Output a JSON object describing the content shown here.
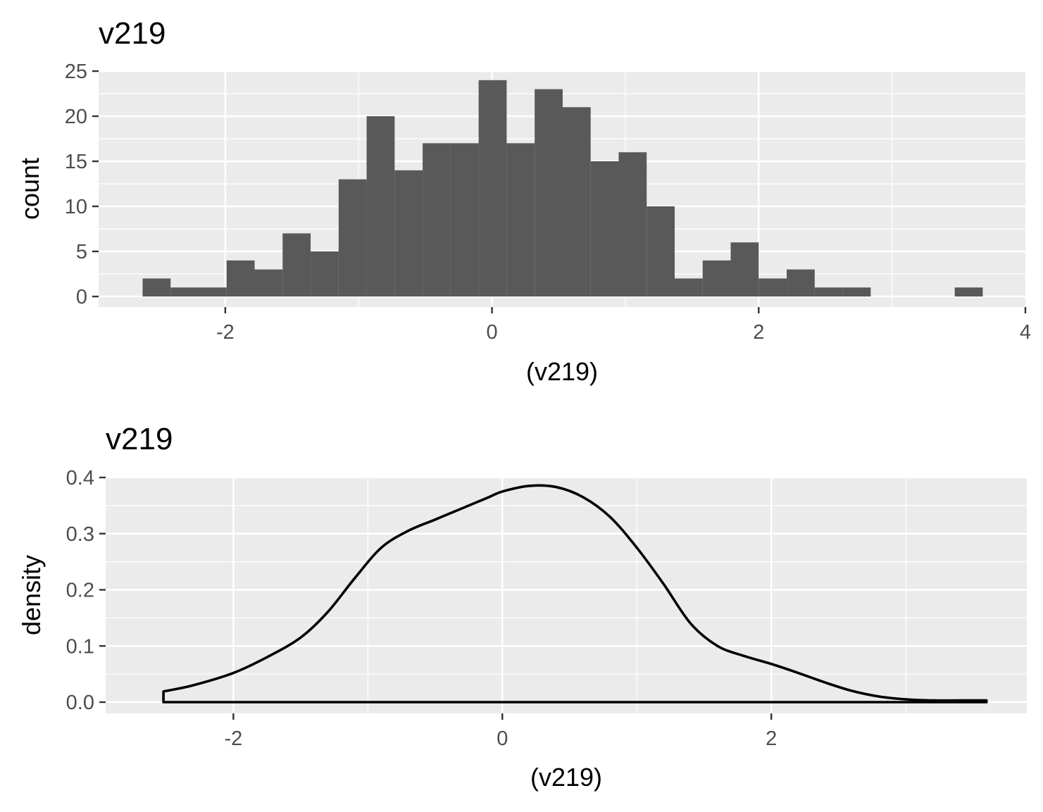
{
  "chart_data": [
    {
      "type": "bar",
      "subtype": "histogram",
      "title": "v219",
      "xlabel": "(v219)",
      "ylabel": "count",
      "xlim": [
        -2.95,
        4.0
      ],
      "ylim": [
        0,
        25
      ],
      "xticks": [
        -2,
        0,
        2,
        4
      ],
      "yticks": [
        0,
        5,
        10,
        15,
        20,
        25
      ],
      "grid": true,
      "bin_width": 0.21,
      "bins": [
        {
          "x0": -2.62,
          "count": 2
        },
        {
          "x0": -2.41,
          "count": 1
        },
        {
          "x0": -2.2,
          "count": 1
        },
        {
          "x0": -1.99,
          "count": 4
        },
        {
          "x0": -1.78,
          "count": 3
        },
        {
          "x0": -1.57,
          "count": 7
        },
        {
          "x0": -1.36,
          "count": 5
        },
        {
          "x0": -1.15,
          "count": 13
        },
        {
          "x0": -0.94,
          "count": 20
        },
        {
          "x0": -0.73,
          "count": 14
        },
        {
          "x0": -0.52,
          "count": 17
        },
        {
          "x0": -0.31,
          "count": 17
        },
        {
          "x0": -0.1,
          "count": 24
        },
        {
          "x0": 0.11,
          "count": 17
        },
        {
          "x0": 0.32,
          "count": 23
        },
        {
          "x0": 0.53,
          "count": 21
        },
        {
          "x0": 0.74,
          "count": 15
        },
        {
          "x0": 0.95,
          "count": 16
        },
        {
          "x0": 1.16,
          "count": 10
        },
        {
          "x0": 1.37,
          "count": 2
        },
        {
          "x0": 1.58,
          "count": 4
        },
        {
          "x0": 1.79,
          "count": 6
        },
        {
          "x0": 2.0,
          "count": 2
        },
        {
          "x0": 2.21,
          "count": 3
        },
        {
          "x0": 2.42,
          "count": 1
        },
        {
          "x0": 2.63,
          "count": 1
        },
        {
          "x0": 2.84,
          "count": 0
        },
        {
          "x0": 3.05,
          "count": 0
        },
        {
          "x0": 3.26,
          "count": 0
        },
        {
          "x0": 3.47,
          "count": 1
        }
      ]
    },
    {
      "type": "line",
      "subtype": "density",
      "title": "v219",
      "xlabel": "(v219)",
      "ylabel": "density",
      "xlim": [
        -2.95,
        3.9
      ],
      "ylim": [
        0,
        0.4
      ],
      "xticks": [
        -2,
        0,
        2
      ],
      "yticks": [
        0.0,
        0.1,
        0.2,
        0.3,
        0.4
      ],
      "ytick_labels": [
        "0.0",
        "0.1",
        "0.2",
        "0.3",
        "0.4"
      ],
      "grid": true,
      "x": [
        -2.52,
        -2.3,
        -2.0,
        -1.75,
        -1.5,
        -1.3,
        -1.1,
        -0.9,
        -0.7,
        -0.5,
        -0.3,
        -0.1,
        0.0,
        0.2,
        0.4,
        0.6,
        0.8,
        1.0,
        1.2,
        1.4,
        1.6,
        1.8,
        2.0,
        2.2,
        2.4,
        2.6,
        2.8,
        3.0,
        3.2,
        3.4,
        3.6
      ],
      "y": [
        0.019,
        0.03,
        0.052,
        0.08,
        0.115,
        0.16,
        0.22,
        0.275,
        0.305,
        0.325,
        0.345,
        0.365,
        0.375,
        0.385,
        0.383,
        0.365,
        0.33,
        0.275,
        0.21,
        0.14,
        0.1,
        0.082,
        0.068,
        0.052,
        0.035,
        0.02,
        0.01,
        0.005,
        0.003,
        0.003,
        0.003
      ]
    }
  ]
}
